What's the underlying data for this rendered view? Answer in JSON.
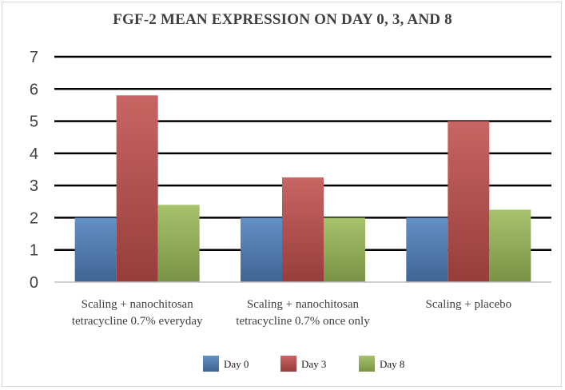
{
  "chart_data": {
    "type": "bar",
    "title": "FGF-2 MEAN EXPRESSION ON DAY 0, 3, AND 8",
    "categories": [
      [
        "Scaling + nanochitosan",
        "tetracycline 0.7% everyday"
      ],
      [
        "Scaling + nanochitosan",
        "tetracycline 0.7% once only"
      ],
      [
        "Scaling + placebo"
      ]
    ],
    "series": [
      {
        "name": "Day 0",
        "values": [
          2.0,
          2.0,
          2.0
        ],
        "color": "#4f81bd"
      },
      {
        "name": "Day 3",
        "values": [
          5.8,
          3.25,
          5.0
        ],
        "color": "#c0504d"
      },
      {
        "name": "Day 8",
        "values": [
          2.4,
          2.0,
          2.25
        ],
        "color": "#9bbb59"
      }
    ],
    "xlabel": "",
    "ylabel": "",
    "ylim": [
      0,
      7
    ],
    "yticks": [
      "0",
      "1",
      "2",
      "3",
      "4",
      "5",
      "6",
      "7"
    ],
    "grid": true,
    "legend_position": "bottom"
  }
}
